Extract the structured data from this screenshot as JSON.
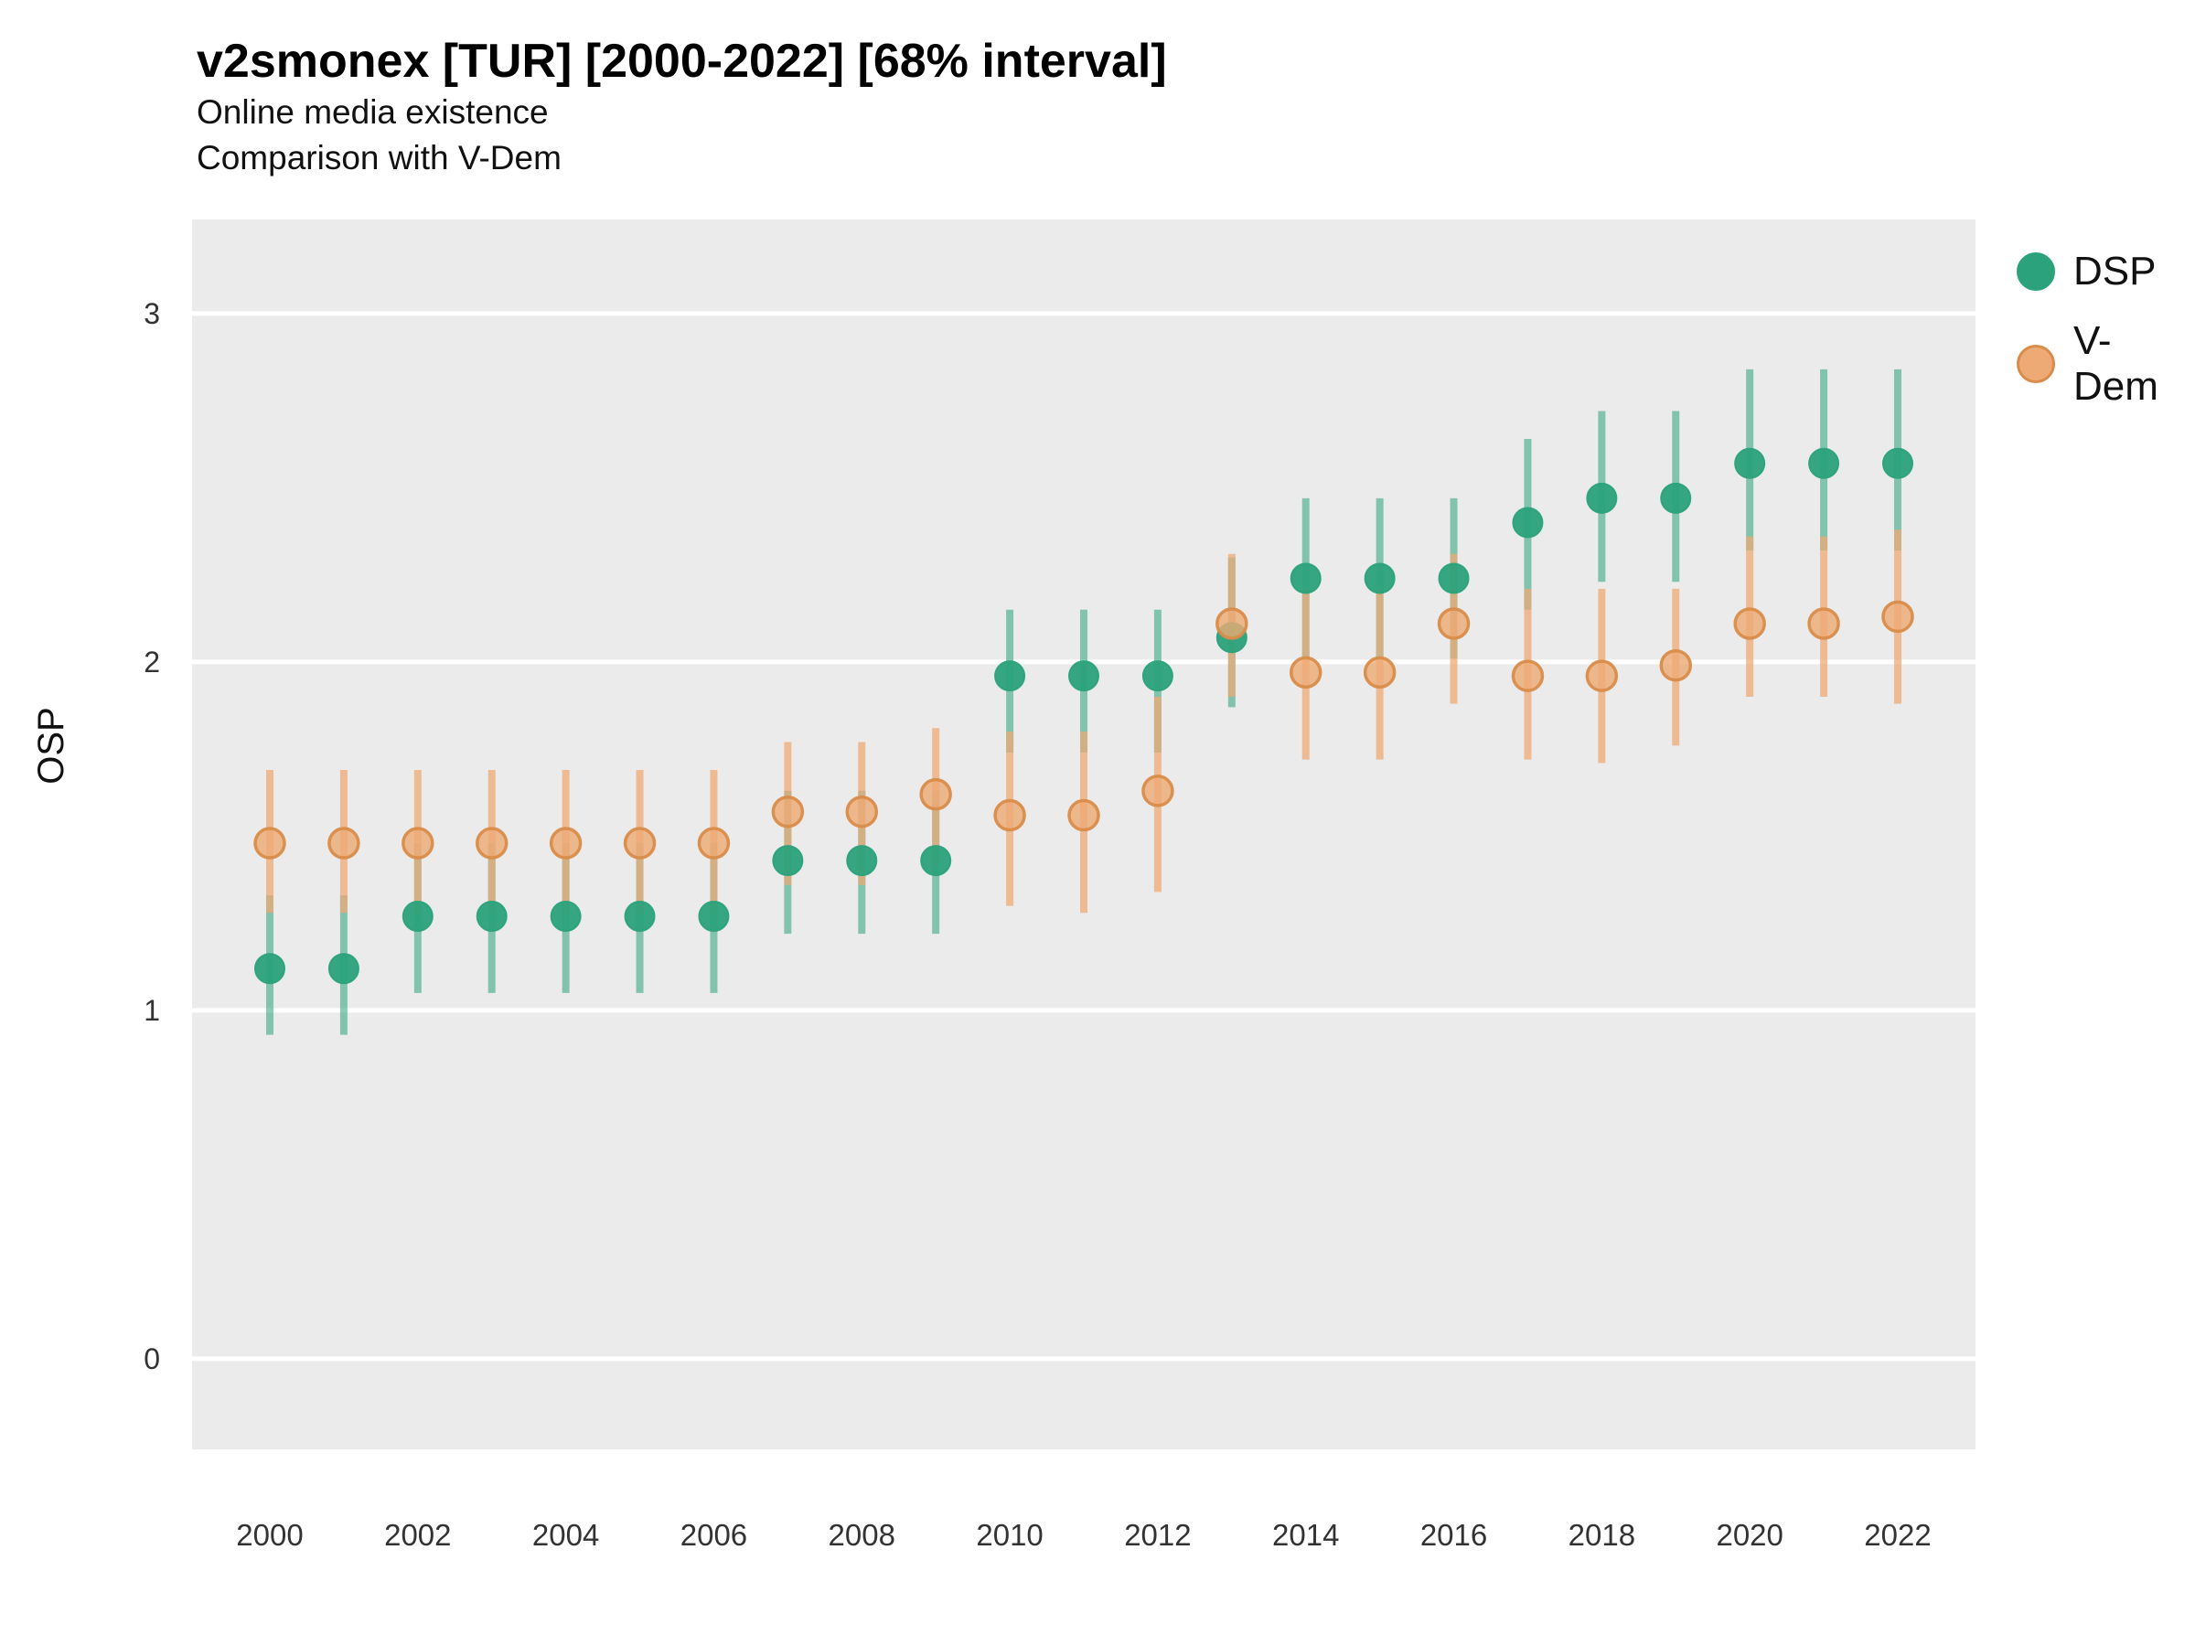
{
  "title": "v2smonex [TUR] [2000-2022] [68% interval]",
  "subtitle1": "Online media existence",
  "subtitle2": "Comparison with V-Dem",
  "ylabel": "OSP",
  "legend": {
    "items": [
      {
        "label": "DSP",
        "color": "#2BA27B",
        "fill_opacity": 1,
        "stroke": "#2BA27B"
      },
      {
        "label": "V-Dem",
        "color": "#EDAA74",
        "fill_opacity": 0.8,
        "stroke": "#D98C4A"
      }
    ]
  },
  "colors": {
    "panel_background": "#EBEBEB",
    "gridline": "#FFFFFF",
    "tick_text": "#333333",
    "dsp": "#2BA27B",
    "vdem": "#EDAA74",
    "vdem_stroke": "#D98C4A"
  },
  "chart_data": {
    "type": "scatter",
    "title": "v2smonex [TUR] [2000-2022] [68% interval]",
    "subtitle": [
      "Online media existence",
      "Comparison with V-Dem"
    ],
    "xlabel": "",
    "ylabel": "OSP",
    "interval": "68%",
    "x": [
      2000,
      2001,
      2002,
      2003,
      2004,
      2005,
      2006,
      2007,
      2008,
      2009,
      2010,
      2011,
      2012,
      2013,
      2014,
      2015,
      2016,
      2017,
      2018,
      2019,
      2020,
      2021,
      2022
    ],
    "xticks": [
      2000,
      2002,
      2004,
      2006,
      2008,
      2010,
      2012,
      2014,
      2016,
      2018,
      2020,
      2022
    ],
    "yticks": [
      0,
      1,
      2,
      3
    ],
    "ylim": [
      -0.26,
      3.27
    ],
    "grid": "major-horizontal",
    "legend_position": "right",
    "series": [
      {
        "name": "DSP",
        "color": "#2BA27B",
        "values": [
          1.12,
          1.12,
          1.27,
          1.27,
          1.27,
          1.27,
          1.27,
          1.43,
          1.43,
          1.43,
          1.96,
          1.96,
          1.96,
          2.07,
          2.24,
          2.24,
          2.24,
          2.4,
          2.47,
          2.47,
          2.57,
          2.57,
          2.57
        ],
        "lower": [
          0.93,
          0.93,
          1.05,
          1.05,
          1.05,
          1.05,
          1.05,
          1.22,
          1.22,
          1.22,
          1.74,
          1.74,
          1.74,
          1.87,
          2.01,
          2.01,
          2.01,
          2.15,
          2.23,
          2.23,
          2.32,
          2.32,
          2.32
        ],
        "upper": [
          1.33,
          1.33,
          1.48,
          1.48,
          1.48,
          1.48,
          1.48,
          1.63,
          1.63,
          1.63,
          2.15,
          2.15,
          2.15,
          2.3,
          2.47,
          2.47,
          2.47,
          2.64,
          2.72,
          2.72,
          2.84,
          2.84,
          2.84
        ]
      },
      {
        "name": "V-Dem",
        "color": "#EDAA74",
        "values": [
          1.48,
          1.48,
          1.48,
          1.48,
          1.48,
          1.48,
          1.48,
          1.57,
          1.57,
          1.62,
          1.56,
          1.56,
          1.63,
          2.11,
          1.97,
          1.97,
          2.11,
          1.96,
          1.96,
          1.99,
          2.11,
          2.11,
          2.13
        ],
        "lower": [
          1.28,
          1.28,
          1.28,
          1.28,
          1.28,
          1.28,
          1.28,
          1.36,
          1.36,
          1.41,
          1.3,
          1.28,
          1.34,
          1.9,
          1.72,
          1.72,
          1.88,
          1.72,
          1.71,
          1.76,
          1.9,
          1.9,
          1.88
        ],
        "upper": [
          1.69,
          1.69,
          1.69,
          1.69,
          1.69,
          1.69,
          1.69,
          1.77,
          1.77,
          1.81,
          1.8,
          1.8,
          1.9,
          2.31,
          2.21,
          2.21,
          2.31,
          2.21,
          2.21,
          2.21,
          2.36,
          2.36,
          2.38
        ]
      }
    ]
  }
}
